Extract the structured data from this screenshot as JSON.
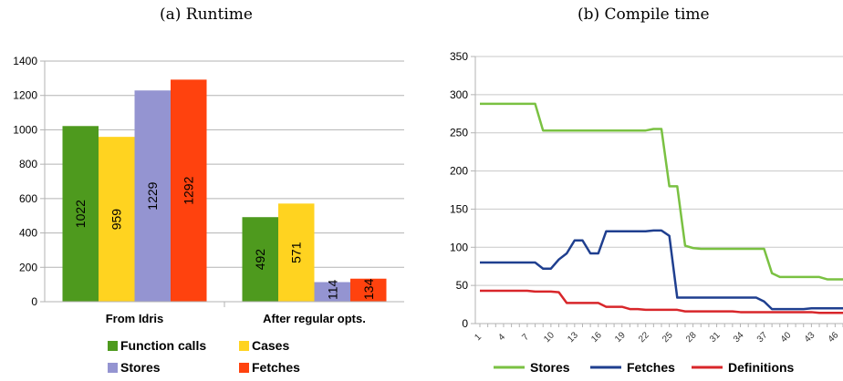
{
  "chart_data": [
    {
      "type": "bar",
      "title": "(a) Runtime",
      "categories": [
        "From Idris",
        "After regular opts."
      ],
      "series": [
        {
          "name": "Function calls",
          "color": "#4e9a1e",
          "values": [
            1022,
            492
          ]
        },
        {
          "name": "Cases",
          "color": "#ffd320",
          "values": [
            959,
            571
          ]
        },
        {
          "name": "Stores",
          "color": "#9494d1",
          "values": [
            1229,
            114
          ]
        },
        {
          "name": "Fetches",
          "color": "#ff420e",
          "values": [
            1292,
            134
          ]
        }
      ],
      "ylim": [
        0,
        1400
      ],
      "yticks": [
        0,
        200,
        400,
        600,
        800,
        1000,
        1200,
        1400
      ],
      "grid": true,
      "legend": "bottom"
    },
    {
      "type": "line",
      "title": "(b) Compile time",
      "x_ticks": [
        "1",
        "4",
        "7",
        "10",
        "13",
        "16",
        "19",
        "22",
        "25",
        "28",
        "31",
        "34",
        "37",
        "40",
        "43",
        "46"
      ],
      "x": [
        1,
        2,
        3,
        4,
        5,
        6,
        7,
        8,
        9,
        10,
        11,
        12,
        13,
        14,
        15,
        16,
        17,
        18,
        19,
        20,
        21,
        22,
        23,
        24,
        25,
        26,
        27,
        28,
        29,
        30,
        31,
        32,
        33,
        34,
        35,
        36,
        37,
        38,
        39,
        40,
        41,
        42,
        43,
        44,
        45,
        46,
        47
      ],
      "series": [
        {
          "name": "Stores",
          "color": "#7ac142",
          "values": [
            288,
            288,
            288,
            288,
            288,
            288,
            288,
            288,
            253,
            253,
            253,
            253,
            253,
            253,
            253,
            253,
            253,
            253,
            253,
            253,
            253,
            253,
            255,
            255,
            180,
            180,
            102,
            99,
            98,
            98,
            98,
            98,
            98,
            98,
            98,
            98,
            98,
            66,
            61,
            61,
            61,
            61,
            61,
            61,
            58,
            58,
            58
          ]
        },
        {
          "name": "Fetches",
          "color": "#1f3f8f",
          "values": [
            80,
            80,
            80,
            80,
            80,
            80,
            80,
            80,
            72,
            72,
            84,
            92,
            109,
            109,
            92,
            92,
            121,
            121,
            121,
            121,
            121,
            121,
            122,
            122,
            115,
            34,
            34,
            34,
            34,
            34,
            34,
            34,
            34,
            34,
            34,
            34,
            29,
            19,
            19,
            19,
            19,
            19,
            20,
            20,
            20,
            20,
            20
          ]
        },
        {
          "name": "Definitions",
          "color": "#d8262a",
          "values": [
            43,
            43,
            43,
            43,
            43,
            43,
            43,
            42,
            42,
            42,
            41,
            27,
            27,
            27,
            27,
            27,
            22,
            22,
            22,
            19,
            19,
            18,
            18,
            18,
            18,
            18,
            16,
            16,
            16,
            16,
            16,
            16,
            16,
            15,
            15,
            15,
            15,
            15,
            15,
            15,
            15,
            15,
            15,
            14,
            14,
            14,
            14
          ]
        }
      ],
      "ylim": [
        0,
        350
      ],
      "yticks": [
        0,
        50,
        100,
        150,
        200,
        250,
        300,
        350
      ],
      "grid": true,
      "legend": "bottom"
    }
  ]
}
